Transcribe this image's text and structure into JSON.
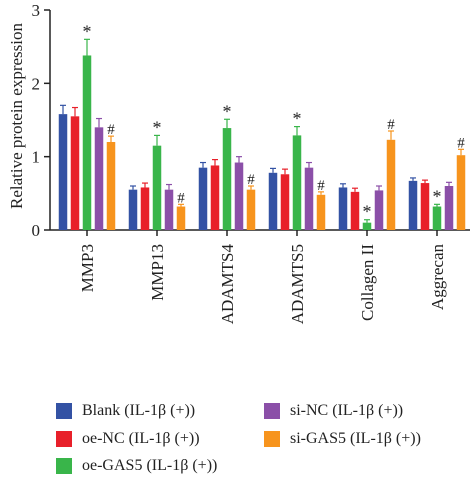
{
  "chart_data": {
    "type": "bar",
    "title": "",
    "ylabel": "Relative protein expression",
    "xlabel": "",
    "ylim": [
      0,
      3
    ],
    "yticks": [
      0,
      1,
      2,
      3
    ],
    "categories": [
      "MMP3",
      "MMP13",
      "ADAMTS4",
      "ADAMTS5",
      "Collagen II",
      "Aggrecan"
    ],
    "series": [
      {
        "name": "Blank (IL-1β (+))",
        "color": "#3352a4",
        "values": [
          1.58,
          0.55,
          0.85,
          0.78,
          0.58,
          0.67
        ],
        "errors": [
          0.12,
          0.05,
          0.07,
          0.06,
          0.05,
          0.04
        ],
        "marks": [
          "",
          "",
          "",
          "",
          "",
          ""
        ]
      },
      {
        "name": "oe-NC (IL-1β (+))",
        "color": "#e8202a",
        "values": [
          1.55,
          0.58,
          0.88,
          0.76,
          0.52,
          0.64
        ],
        "errors": [
          0.12,
          0.06,
          0.08,
          0.07,
          0.05,
          0.04
        ],
        "marks": [
          "",
          "",
          "",
          "",
          "",
          ""
        ]
      },
      {
        "name": "oe-GAS5 (IL-1β (+))",
        "color": "#39b54a",
        "values": [
          2.38,
          1.15,
          1.39,
          1.29,
          0.1,
          0.32
        ],
        "errors": [
          0.22,
          0.14,
          0.12,
          0.12,
          0.04,
          0.03
        ],
        "marks": [
          "*",
          "*",
          "*",
          "*",
          "*",
          "*"
        ]
      },
      {
        "name": "si-NC (IL-1β (+))",
        "color": "#8b4fa8",
        "values": [
          1.4,
          0.55,
          0.92,
          0.85,
          0.54,
          0.6
        ],
        "errors": [
          0.12,
          0.07,
          0.08,
          0.07,
          0.06,
          0.05
        ],
        "marks": [
          "",
          "",
          "",
          "",
          "",
          ""
        ]
      },
      {
        "name": "si-GAS5 (IL-1β (+))",
        "color": "#f7941d",
        "values": [
          1.2,
          0.32,
          0.55,
          0.48,
          1.23,
          1.02
        ],
        "errors": [
          0.08,
          0.03,
          0.05,
          0.04,
          0.12,
          0.08
        ],
        "marks": [
          "#",
          "#",
          "#",
          "#",
          "#",
          "#"
        ]
      }
    ],
    "legend_position": "bottom"
  }
}
